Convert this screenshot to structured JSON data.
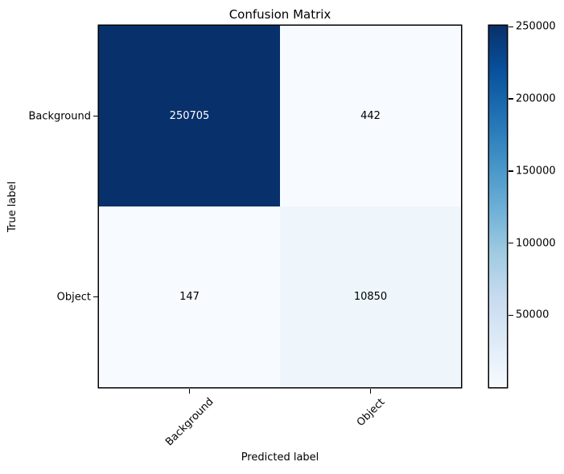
{
  "chart_data": {
    "type": "heatmap",
    "title": "Confusion Matrix",
    "xlabel": "Predicted label",
    "ylabel": "True label",
    "x_categories": [
      "Background",
      "Object"
    ],
    "y_categories": [
      "Background",
      "Object"
    ],
    "matrix": [
      [
        250705,
        442
      ],
      [
        147,
        10850
      ]
    ],
    "vmin": 147,
    "vmax": 250705,
    "colormap": "Blues",
    "colormap_stops": [
      "#f7fbff",
      "#deebf7",
      "#c6dbef",
      "#9ecae1",
      "#6baed6",
      "#4292c6",
      "#2171b5",
      "#08519c",
      "#08306b"
    ],
    "colorbar_ticks": [
      50000,
      100000,
      150000,
      200000,
      250000
    ],
    "cell_text_color_high": "#ffffff",
    "cell_text_color_low": "#000000",
    "axis_color": "#000000",
    "background_color": "#ffffff",
    "legend_position": "right-colorbar",
    "grid": false,
    "x_tick_rotation_deg": 45
  }
}
